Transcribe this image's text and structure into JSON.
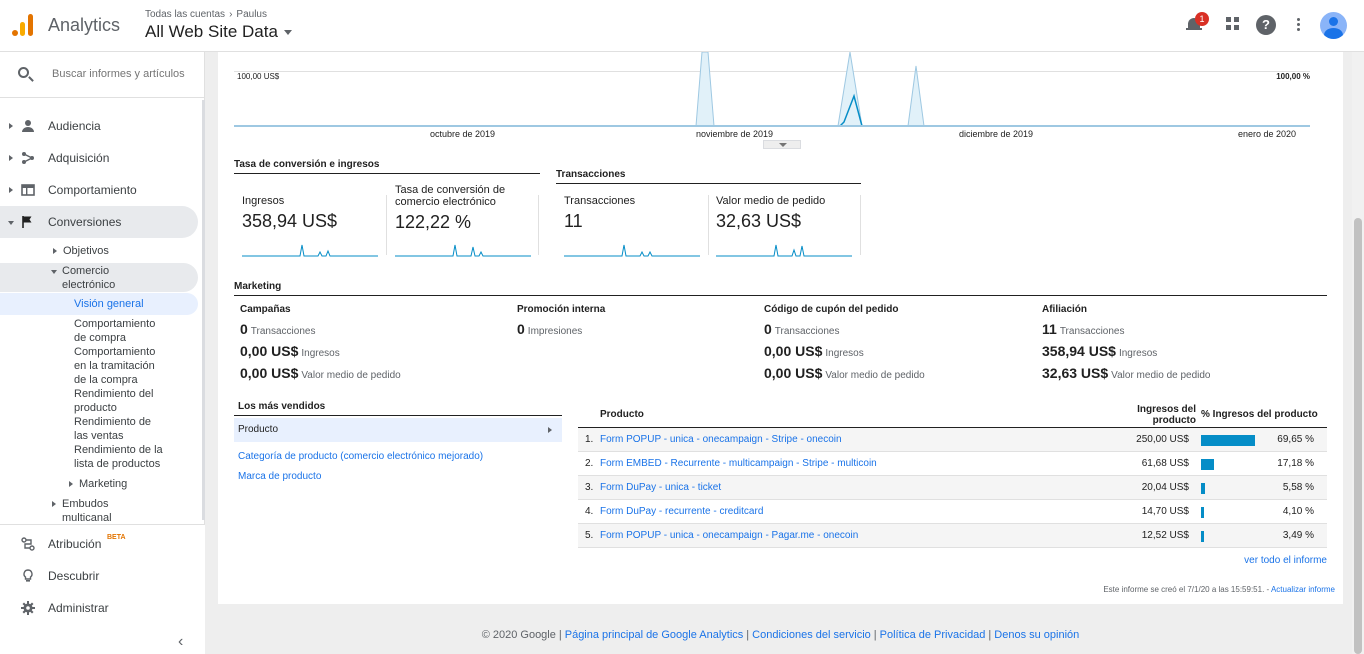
{
  "header": {
    "app_title": "Analytics",
    "breadcrumb": {
      "account": "Todas las cuentas",
      "property": "Paulus"
    },
    "view_name": "All Web Site Data",
    "notifications_count": "1"
  },
  "sidebar": {
    "search_placeholder": "Buscar informes y artículos",
    "items": [
      {
        "label": "Audiencia",
        "icon": "person-icon"
      },
      {
        "label": "Adquisición",
        "icon": "acquisition-icon"
      },
      {
        "label": "Comportamiento",
        "icon": "browser-window-icon"
      },
      {
        "label": "Conversiones",
        "icon": "flag-icon"
      }
    ],
    "conversions_sub": {
      "objetivos": "Objetivos",
      "ecommerce_line1": "Comercio",
      "ecommerce_line2": "electrónico",
      "overview": "Visión general",
      "shopping_behavior": [
        "Comportamiento",
        "de compra"
      ],
      "checkout_behavior": [
        "Comportamiento",
        "en la tramitación",
        "de la compra"
      ],
      "product_performance": [
        "Rendimiento del",
        "producto"
      ],
      "sales_performance": [
        "Rendimiento de",
        "las ventas"
      ],
      "list_performance": [
        "Rendimiento de la",
        "lista de productos"
      ],
      "marketing": "Marketing",
      "multichannel": [
        "Embudos",
        "multicanal"
      ]
    },
    "bottom_items": [
      {
        "label": "Atribución",
        "icon": "attribution-icon",
        "badge": "BETA"
      },
      {
        "label": "Descubrir",
        "icon": "lightbulb-icon"
      },
      {
        "label": "Administrar",
        "icon": "gear-icon"
      }
    ]
  },
  "chart": {
    "y_left": "100,00 US$",
    "y_right": "100,00 %",
    "x_labels": [
      "octubre de 2019",
      "noviembre de 2019",
      "diciembre de 2019",
      "enero de 2020"
    ],
    "colors": {
      "line_primary": "#058dc7",
      "area_fill": "#e1f1f9",
      "line_secondary": "#9ec8e2"
    }
  },
  "conversion_section": {
    "title": "Tasa de conversión e ingresos",
    "kpis": [
      {
        "label": "Ingresos",
        "value": "358,94 US$"
      },
      {
        "label": "Tasa de conversión de comercio electrónico",
        "value": "122,22 %"
      }
    ]
  },
  "transactions_section": {
    "title": "Transacciones",
    "kpis": [
      {
        "label": "Transacciones",
        "value": "11"
      },
      {
        "label": "Valor medio de pedido",
        "value": "32,63 US$"
      }
    ]
  },
  "marketing": {
    "title": "Marketing",
    "columns": [
      {
        "heading": "Campañas",
        "rows": [
          {
            "value": "0",
            "label": "Transacciones"
          },
          {
            "value": "0,00 US$",
            "label": "Ingresos"
          },
          {
            "value": "0,00 US$",
            "label": "Valor medio de pedido"
          }
        ]
      },
      {
        "heading": "Promoción interna",
        "rows": [
          {
            "value": "0",
            "label": "Impresiones"
          }
        ]
      },
      {
        "heading": "Código de cupón del pedido",
        "rows": [
          {
            "value": "0",
            "label": "Transacciones"
          },
          {
            "value": "0,00 US$",
            "label": "Ingresos"
          },
          {
            "value": "0,00 US$",
            "label": "Valor medio de pedido"
          }
        ]
      },
      {
        "heading": "Afiliación",
        "rows": [
          {
            "value": "11",
            "label": "Transacciones"
          },
          {
            "value": "358,94 US$",
            "label": "Ingresos"
          },
          {
            "value": "32,63 US$",
            "label": "Valor medio de pedido"
          }
        ]
      }
    ]
  },
  "top_sellers": {
    "title": "Los más vendidos",
    "selected": "Producto",
    "links": [
      "Categoría de producto (comercio electrónico mejorado)",
      "Marca de producto"
    ]
  },
  "products_table": {
    "headers": {
      "product": "Producto",
      "revenue": "Ingresos del producto",
      "share": "% Ingresos del producto"
    },
    "rows": [
      {
        "n": "1.",
        "product": "Form POPUP - unica - onecampaign - Stripe - onecoin",
        "revenue": "250,00 US$",
        "share": "69,65 %",
        "share_value": 69.65
      },
      {
        "n": "2.",
        "product": "Form EMBED - Recurrente - multicampaign - Stripe - multicoin",
        "revenue": "61,68 US$",
        "share": "17,18 %",
        "share_value": 17.18
      },
      {
        "n": "3.",
        "product": "Form DuPay - unica - ticket",
        "revenue": "20,04 US$",
        "share": "5,58 %",
        "share_value": 5.58
      },
      {
        "n": "4.",
        "product": "Form DuPay - recurrente - creditcard",
        "revenue": "14,70 US$",
        "share": "4,10 %",
        "share_value": 4.1
      },
      {
        "n": "5.",
        "product": "Form POPUP - unica - onecampaign - Pagar.me - onecoin",
        "revenue": "12,52 US$",
        "share": "3,49 %",
        "share_value": 3.49
      }
    ],
    "see_all": "ver todo el informe"
  },
  "report_info": {
    "created": "Este informe se creó el 7/1/20 a las 15:59:51. -",
    "refresh": "Actualizar informe"
  },
  "footer": {
    "copyright": "© 2020 Google",
    "links": [
      "Página principal de Google Analytics",
      "Condiciones del servicio",
      "Política de Privacidad",
      "Denos su opinión"
    ]
  }
}
